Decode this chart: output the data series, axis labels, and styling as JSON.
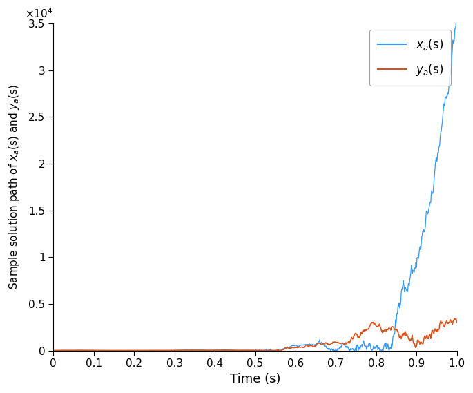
{
  "xlabel": "Time (s)",
  "xlim": [
    0,
    1.0
  ],
  "ylim": [
    0,
    35000
  ],
  "yticks": [
    0,
    5000,
    10000,
    15000,
    20000,
    25000,
    30000,
    35000
  ],
  "ytick_labels": [
    "0",
    "0.5",
    "1",
    "1.5",
    "2",
    "2.5",
    "3",
    "3.5"
  ],
  "xticks": [
    0,
    0.1,
    0.2,
    0.3,
    0.4,
    0.5,
    0.6,
    0.7,
    0.8,
    0.9,
    1.0
  ],
  "line1_color": "#3399FF",
  "line2_color": "#D95319",
  "seed_xa": 7,
  "seed_ya": 13,
  "n_points": 1000,
  "background_color": "#ffffff",
  "figwidth": 6.85,
  "figheight": 5.69,
  "dpi": 100
}
